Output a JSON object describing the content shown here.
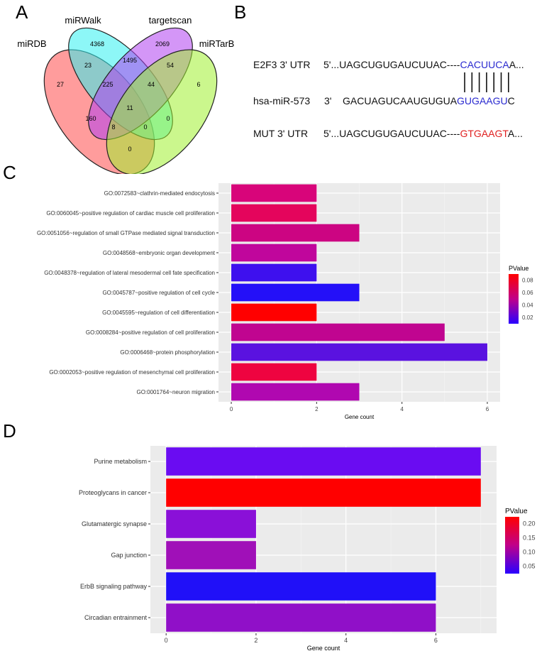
{
  "panels": {
    "a": "A",
    "b": "B",
    "c": "C",
    "d": "D"
  },
  "venn": {
    "sets": [
      "miRDB",
      "miRWalk",
      "targetscan",
      "miRTarBase"
    ],
    "colors": [
      "#ff4a4a",
      "#30f0f0",
      "#b040f0",
      "#a0f030"
    ],
    "regions": [
      {
        "label": "miRWalk only",
        "value": "4368"
      },
      {
        "label": "targetscan only",
        "value": "2069"
      },
      {
        "label": "miRDB∩miRWalk",
        "value": "23"
      },
      {
        "label": "miRWalk∩targetscan",
        "value": "1495"
      },
      {
        "label": "targetscan∩miRTarBase",
        "value": "54"
      },
      {
        "label": "miRDB only",
        "value": "27"
      },
      {
        "label": "miRDB∩miRWalk∩targetscan",
        "value": "225"
      },
      {
        "label": "miRWalk∩targetscan∩miRTarBase",
        "value": "44"
      },
      {
        "label": "miRTarBase only",
        "value": "6"
      },
      {
        "label": "all four",
        "value": "11"
      },
      {
        "label": "miRDB∩targetscan",
        "value": "160"
      },
      {
        "label": "miRWalk∩miRTarBase",
        "value": "0"
      },
      {
        "label": "miRDB∩targetscan∩miRTarBase",
        "value": "8"
      },
      {
        "label": "miRDB∩miRWalk∩miRTarBase",
        "value": "0"
      },
      {
        "label": "miRDB∩miRTarBase",
        "value": "0"
      }
    ]
  },
  "alignment": {
    "rows": [
      {
        "label": "E2F3 3' UTR",
        "prefix": "5'...UAGCUGUGAUCUUAC----",
        "highlight": "CACUUCA",
        "suffix": "A...",
        "color": "#2a2ad0"
      },
      {
        "label": "hsa-miR-573",
        "prefix": "3'    GACUAGUCAAUGUGUA",
        "highlight": "GUGAAGU",
        "suffix": "C",
        "color": "#2a2ad0"
      },
      {
        "label": "MUT 3' UTR",
        "prefix": "5'...UAGCUGUGAUCUUAC----",
        "highlight": "GTGAAGT",
        "suffix": "A...",
        "color": "#e02020"
      }
    ]
  },
  "chart_data": [
    {
      "type": "bar",
      "orientation": "horizontal",
      "xlabel": "Gene count",
      "ylabel": "",
      "xlim": [
        -0.3,
        6.3
      ],
      "xticks": [
        "0",
        "2",
        "4",
        "6"
      ],
      "legend": {
        "title": "PValue",
        "ticks": [
          "0.08",
          "0.06",
          "0.04",
          "0.02"
        ],
        "placement": "right",
        "low_color": "#2a00ff",
        "high_color": "#ff0000"
      },
      "categories": [
        "GO:0072583~clathrin-mediated endocytosis",
        "GO:0060045~positive regulation of cardiac muscle cell proliferation",
        "GO:0051056~regulation of small GTPase mediated signal transduction",
        "GO:0048568~embryonic organ development",
        "GO:0048378~regulation of lateral mesodermal cell fate specification",
        "GO:0045787~positive regulation of cell cycle",
        "GO:0045595~regulation of cell differentiation",
        "GO:0008284~positive regulation of cell proliferation",
        "GO:0006468~protein phosphorylation",
        "GO:0002053~positive regulation of mesenchymal cell proliferation",
        "GO:0001764~neuron migration"
      ],
      "values": [
        2,
        2,
        3,
        2,
        2,
        3,
        2,
        5,
        6,
        2,
        3
      ],
      "colors": [
        "#d8057a",
        "#e4055c",
        "#cc0582",
        "#c0069c",
        "#3e10ee",
        "#2410f8",
        "#ff0000",
        "#c00590",
        "#5a12e0",
        "#ee0440",
        "#b008b0"
      ]
    },
    {
      "type": "bar",
      "orientation": "horizontal",
      "xlabel": "Gene count",
      "ylabel": "",
      "xlim": [
        -0.35,
        7.35
      ],
      "xticks": [
        "0",
        "2",
        "4",
        "6"
      ],
      "legend": {
        "title": "PValue",
        "ticks": [
          "0.20",
          "0.15",
          "0.10",
          "0.05"
        ],
        "placement": "right",
        "low_color": "#2a00ff",
        "high_color": "#ff0000"
      },
      "categories": [
        "Purine metabolism",
        "Proteoglycans in cancer",
        "Glutamatergic synapse",
        "Gap junction",
        "ErbB signaling pathway",
        "Circadian entrainment"
      ],
      "values": [
        7,
        7,
        2,
        2,
        6,
        6
      ],
      "colors": [
        "#6a0cf2",
        "#ff0000",
        "#8a10d8",
        "#a010b8",
        "#2010f8",
        "#9010c8"
      ]
    }
  ]
}
